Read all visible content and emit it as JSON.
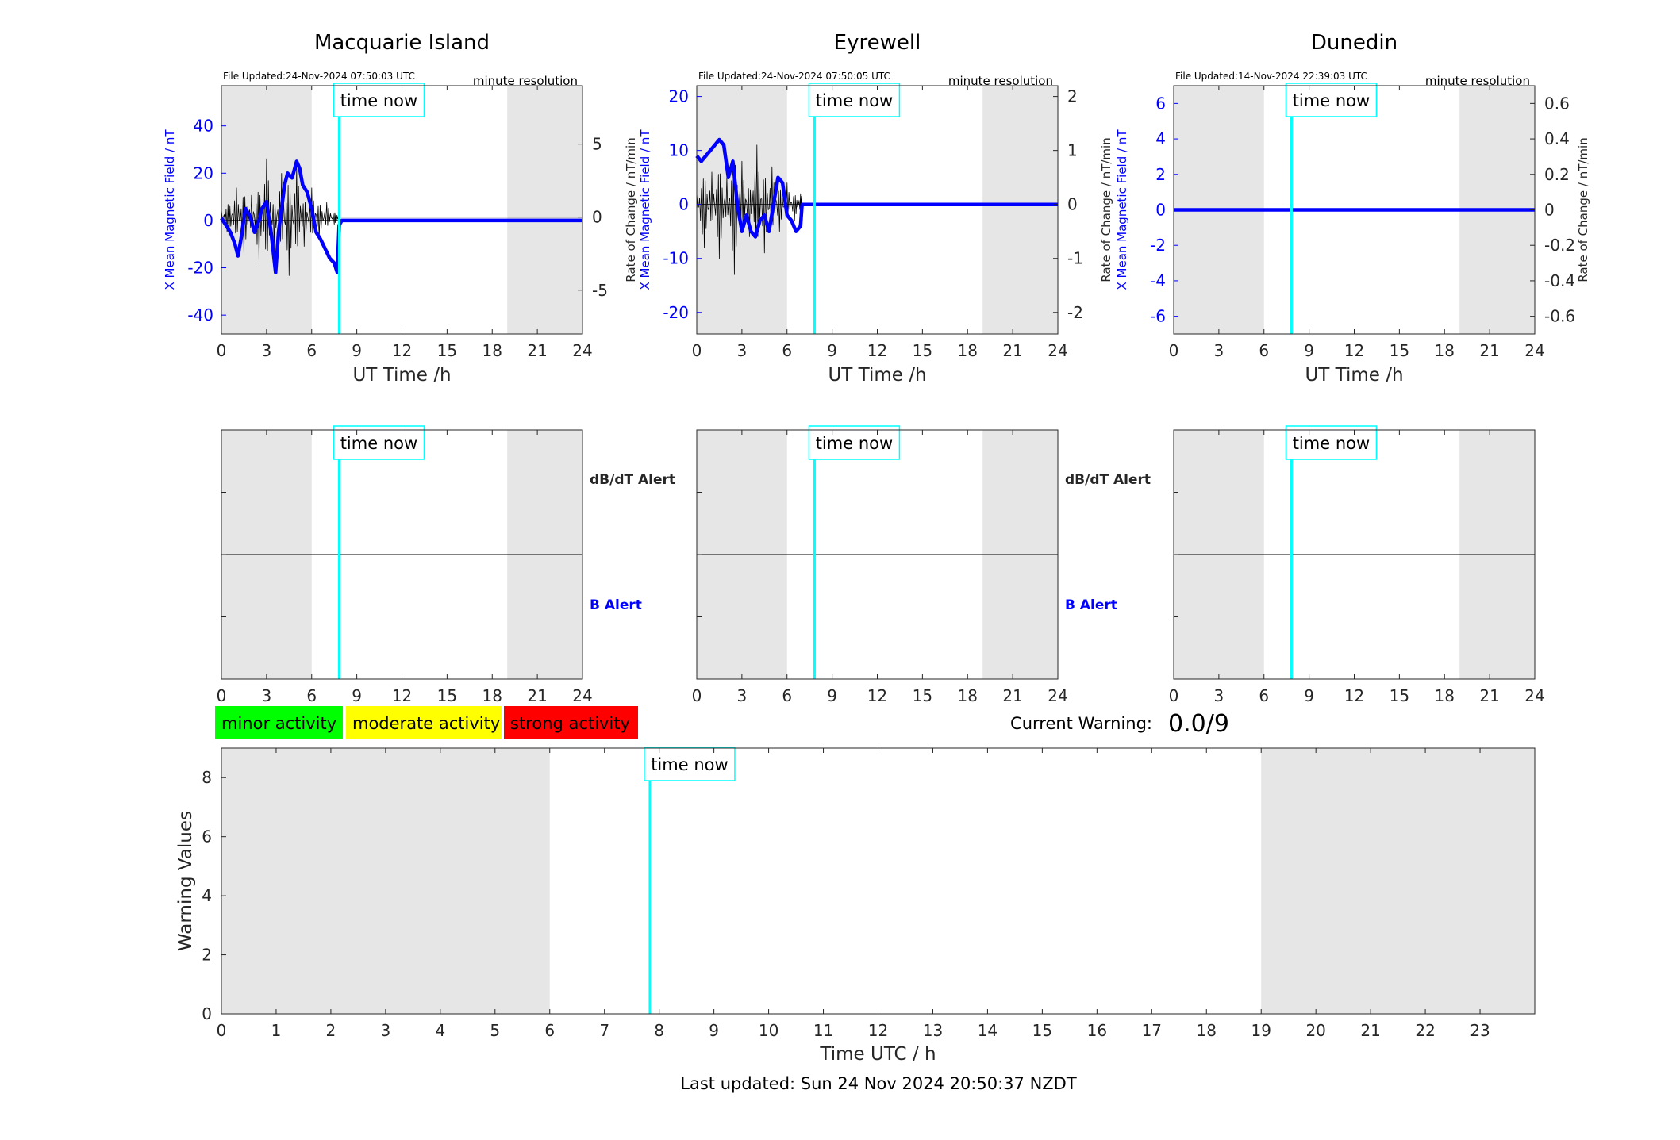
{
  "colors": {
    "x_field": "#0000ff",
    "rate": "#000000",
    "time_now": "#00ffff",
    "night": "#e6e6e6",
    "minor": "#00ff00",
    "moderate": "#ffff00",
    "strong": "#ff0000"
  },
  "labels": {
    "time_now": "time now",
    "resolution": "minute resolution",
    "dbdt_alert": "dB/dT Alert",
    "b_alert": "B Alert",
    "ut_time": "UT Time /h",
    "x_field_ylabel": "X Mean Magnetic Field / nT",
    "rate_ylabel": "Rate of Change / nT/min",
    "current_warning_label": "Current Warning:",
    "current_warning_value": "0.0/9",
    "last_updated": "Last updated: Sun 24 Nov 2024 20:50:37 NZDT"
  },
  "legend": [
    {
      "label": "minor activity",
      "color": "#00ff00"
    },
    {
      "label": "moderate activity",
      "color": "#ffff00"
    },
    {
      "label": "strong activity",
      "color": "#ff0000"
    }
  ],
  "chart_data": [
    {
      "type": "line",
      "title": "Macquarie Island",
      "file_updated": "File Updated:24-Nov-2024 07:50:03 UTC",
      "xlabel": "UT Time /h",
      "ylabel": "X Mean Magnetic Field / nT",
      "ylabel_right": "Rate of Change / nT/min",
      "xlim": [
        0,
        24
      ],
      "ylim": [
        -48,
        57
      ],
      "ylim_right": [
        -8,
        9
      ],
      "yticks": [
        -40,
        -20,
        0,
        20,
        40
      ],
      "yticks_right": [
        -5,
        0,
        5
      ],
      "night_hours": [
        [
          0,
          6
        ],
        [
          19,
          24
        ]
      ],
      "time_now": 7.83,
      "x_field": {
        "x": [
          0,
          0.3,
          0.6,
          0.9,
          1.1,
          1.3,
          1.6,
          1.9,
          2.2,
          2.5,
          2.7,
          3.0,
          3.3,
          3.6,
          3.8,
          4.0,
          4.2,
          4.4,
          4.7,
          5.0,
          5.2,
          5.4,
          5.7,
          6.0,
          6.3,
          6.6,
          6.9,
          7.2,
          7.5,
          7.7,
          7.83,
          8.0,
          24
        ],
        "y": [
          1,
          -2,
          -5,
          -10,
          -15,
          -8,
          5,
          2,
          -5,
          0,
          5,
          8,
          -5,
          -22,
          -5,
          5,
          15,
          20,
          18,
          25,
          22,
          15,
          12,
          5,
          -5,
          -8,
          -12,
          -16,
          -18,
          -22,
          -2,
          0,
          0
        ]
      },
      "rate": {
        "x": [
          0,
          0.5,
          1.0,
          1.5,
          2.0,
          2.5,
          3.0,
          3.5,
          4.0,
          4.5,
          5.0,
          5.5,
          6.0,
          6.5,
          7.0,
          7.5,
          7.8,
          24
        ],
        "y": [
          0.5,
          -1.5,
          2,
          -2.5,
          1.5,
          -3,
          4,
          -2,
          3,
          -4,
          3.5,
          -2,
          2,
          -1.5,
          1,
          -0.5,
          0,
          0
        ]
      }
    },
    {
      "type": "line",
      "title": "Eyrewell",
      "file_updated": "File Updated:24-Nov-2024 07:50:05 UTC",
      "xlabel": "UT Time /h",
      "ylabel": "X Mean Magnetic Field / nT",
      "ylabel_right": "Rate of Change / nT/min",
      "xlim": [
        0,
        24
      ],
      "ylim": [
        -24,
        22
      ],
      "ylim_right": [
        -2.4,
        2.2
      ],
      "yticks": [
        -20,
        -10,
        0,
        10,
        20
      ],
      "yticks_right": [
        -2,
        -1,
        0,
        1,
        2
      ],
      "night_hours": [
        [
          0,
          6
        ],
        [
          19,
          24
        ]
      ],
      "time_now": 7.83,
      "x_field": {
        "x": [
          0,
          0.3,
          0.6,
          0.9,
          1.2,
          1.5,
          1.8,
          2.1,
          2.4,
          2.7,
          3.0,
          3.3,
          3.6,
          3.9,
          4.2,
          4.5,
          4.8,
          5.1,
          5.4,
          5.7,
          6.0,
          6.3,
          6.6,
          6.9,
          7.0,
          7.83,
          24
        ],
        "y": [
          9,
          8,
          9,
          10,
          11,
          12,
          11,
          5,
          8,
          0,
          -5,
          -2,
          -5,
          -6,
          -3,
          -2,
          -5,
          0,
          5,
          4,
          -2,
          -3,
          -5,
          -4,
          0,
          0,
          0
        ]
      },
      "rate": {
        "x": [
          0,
          0.5,
          1.0,
          1.5,
          2.0,
          2.5,
          3.0,
          3.5,
          4.0,
          4.5,
          5.0,
          5.5,
          6.0,
          6.5,
          6.9,
          7.0,
          24
        ],
        "y": [
          0.2,
          -0.8,
          0.6,
          -1.0,
          0.5,
          -1.3,
          0.8,
          -0.6,
          1.1,
          -0.9,
          0.7,
          -0.5,
          0.4,
          -0.3,
          0.2,
          0,
          0
        ]
      }
    },
    {
      "type": "line",
      "title": "Dunedin",
      "file_updated": "File Updated:14-Nov-2024 22:39:03 UTC",
      "xlabel": "UT Time /h",
      "ylabel": "X Mean Magnetic Field / nT",
      "ylabel_right": "Rate of Change / nT/min",
      "xlim": [
        0,
        24
      ],
      "ylim": [
        -7,
        7
      ],
      "ylim_right": [
        -0.7,
        0.7
      ],
      "yticks": [
        -6,
        -4,
        -2,
        0,
        2,
        4,
        6
      ],
      "yticks_right": [
        -0.6,
        -0.4,
        -0.2,
        0,
        0.2,
        0.4,
        0.6
      ],
      "ytick_labels_right": [
        "-0.6",
        "-0.4",
        "-0.2",
        "0",
        "0.2",
        "0.4",
        "0.6"
      ],
      "night_hours": [
        [
          0,
          6
        ],
        [
          19,
          24
        ]
      ],
      "time_now": 7.83,
      "x_field": {
        "x": [
          0,
          24
        ],
        "y": [
          0,
          0
        ]
      },
      "rate": {
        "x": [
          0,
          24
        ],
        "y": [
          0,
          0
        ]
      }
    },
    {
      "type": "alert",
      "name": "Macquarie Island alerts",
      "xlim": [
        0,
        24
      ],
      "night_hours": [
        [
          0,
          6
        ],
        [
          19,
          24
        ]
      ],
      "time_now": 7.83
    },
    {
      "type": "alert",
      "name": "Eyrewell alerts",
      "xlim": [
        0,
        24
      ],
      "night_hours": [
        [
          0,
          6
        ],
        [
          19,
          24
        ]
      ],
      "time_now": 7.83
    },
    {
      "type": "alert",
      "name": "Dunedin alerts",
      "xlim": [
        0,
        24
      ],
      "night_hours": [
        [
          0,
          6
        ],
        [
          19,
          24
        ]
      ],
      "time_now": 7.83
    },
    {
      "type": "bar",
      "name": "warning values",
      "xlabel": "Time UTC / h",
      "ylabel": "Warning Values",
      "xlim": [
        0,
        24
      ],
      "ylim": [
        0,
        9
      ],
      "xticks": [
        0,
        1,
        2,
        3,
        4,
        5,
        6,
        7,
        8,
        9,
        10,
        11,
        12,
        13,
        14,
        15,
        16,
        17,
        18,
        19,
        20,
        21,
        22,
        23
      ],
      "yticks": [
        0,
        2,
        4,
        6,
        8
      ],
      "night_hours": [
        [
          0,
          6
        ],
        [
          19,
          24
        ]
      ],
      "time_now": 7.83,
      "values": []
    }
  ]
}
